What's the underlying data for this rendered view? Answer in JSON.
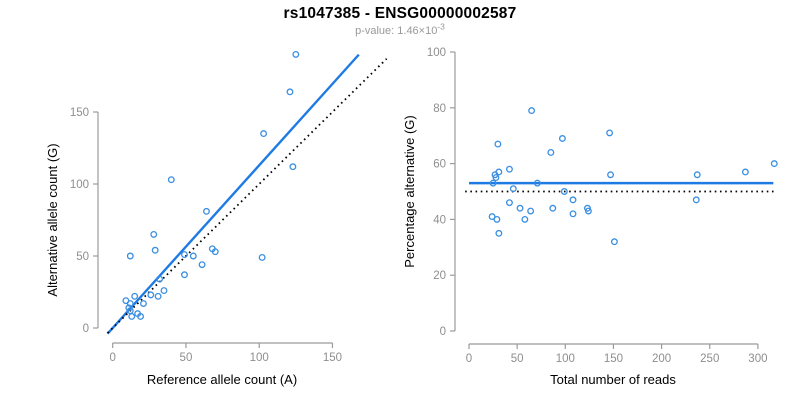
{
  "header": {
    "title": "rs1047385 - ENSG00000002587",
    "subtitle_text": "p-value: 1.46×10",
    "p_value_exponent": "-3"
  },
  "colors": {
    "fit_line": "#1f7be4",
    "point_stroke": "#3a8fe2",
    "reference_dotted": "#000000",
    "axis": "#9b9b9b",
    "tick_label": "#8e8e8e",
    "axis_title": "#000000",
    "title": "#000000",
    "subtitle": "#999999"
  },
  "chart_data": [
    {
      "type": "scatter",
      "panel": "left",
      "xlabel": "Reference allele count (A)",
      "ylabel": "Alternative allele count (G)",
      "xticks": [
        0,
        50,
        100,
        150
      ],
      "yticks": [
        0,
        50,
        100,
        150
      ],
      "xlim": [
        0,
        150
      ],
      "ylim": [
        0,
        150
      ],
      "grid": false,
      "points": [
        [
          125,
          190
        ],
        [
          121,
          164
        ],
        [
          103,
          135
        ],
        [
          123,
          112
        ],
        [
          40,
          103
        ],
        [
          64,
          81
        ],
        [
          28,
          65
        ],
        [
          102,
          49
        ],
        [
          68,
          55
        ],
        [
          70,
          53
        ],
        [
          55,
          50
        ],
        [
          49,
          51
        ],
        [
          61,
          44
        ],
        [
          49,
          37
        ],
        [
          29,
          54
        ],
        [
          12,
          50
        ],
        [
          32,
          34
        ],
        [
          35,
          26
        ],
        [
          26,
          23
        ],
        [
          31,
          22
        ],
        [
          15,
          22
        ],
        [
          9,
          19
        ],
        [
          21,
          17
        ],
        [
          12,
          17
        ],
        [
          11,
          14
        ],
        [
          12,
          12
        ],
        [
          17,
          10
        ],
        [
          13,
          8
        ],
        [
          19,
          8
        ]
      ],
      "lines": [
        {
          "kind": "abline",
          "name": "regression-line",
          "slope": 1.13,
          "intercept": 0,
          "style": "solid",
          "color": "#1f7be4",
          "x_range": [
            -3.5,
            168
          ]
        },
        {
          "kind": "abline",
          "name": "identity-line",
          "slope": 1.0,
          "intercept": 0,
          "style": "dotted",
          "color": "#000000",
          "x_range": [
            -3.5,
            187
          ]
        }
      ]
    },
    {
      "type": "scatter",
      "panel": "right",
      "xlabel": "Total number of reads",
      "ylabel": "Percentage alternative (G)",
      "xticks": [
        0,
        50,
        100,
        150,
        200,
        250,
        300
      ],
      "yticks": [
        0,
        20,
        40,
        60,
        80,
        100
      ],
      "xlim": [
        0,
        300
      ],
      "ylim": [
        0,
        100
      ],
      "grid": false,
      "points": [
        [
          65,
          79
        ],
        [
          146,
          71
        ],
        [
          97,
          69
        ],
        [
          85,
          64
        ],
        [
          30,
          67
        ],
        [
          42,
          58
        ],
        [
          31,
          57
        ],
        [
          27,
          56
        ],
        [
          28,
          55
        ],
        [
          25,
          53
        ],
        [
          71,
          53
        ],
        [
          147,
          56
        ],
        [
          46,
          51
        ],
        [
          99,
          50
        ],
        [
          108,
          47
        ],
        [
          42,
          46
        ],
        [
          53,
          44
        ],
        [
          64,
          43
        ],
        [
          58,
          40
        ],
        [
          87,
          44
        ],
        [
          24,
          41
        ],
        [
          29,
          40
        ],
        [
          123,
          44
        ],
        [
          124,
          43
        ],
        [
          108,
          42
        ],
        [
          31,
          35
        ],
        [
          151,
          32
        ],
        [
          237,
          56
        ],
        [
          236,
          47
        ],
        [
          287,
          57
        ],
        [
          317,
          60
        ]
      ],
      "lines": [
        {
          "kind": "hline",
          "name": "mean-percentage-line",
          "value": 53,
          "style": "solid",
          "color": "#1f7be4",
          "x_range": [
            0,
            316
          ]
        },
        {
          "kind": "hline",
          "name": "null-50-percent-line",
          "value": 50,
          "style": "dotted",
          "color": "#000000",
          "x_range": [
            -4,
            318
          ]
        }
      ]
    }
  ]
}
